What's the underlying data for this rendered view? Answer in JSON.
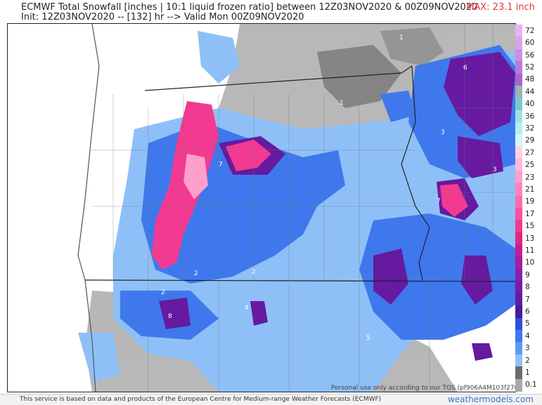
{
  "header": {
    "title": "ECMWF Total Snowfall [inches | 10:1 liquid frozen ratio] between 12Z03NOV2020 & 00Z09NOV2020",
    "init": "Init: 12Z03NOV2020 -- [132] hr --> Valid Mon 00Z09NOV2020",
    "max": "MAX: 23.1 inch"
  },
  "legend": {
    "levels": [
      {
        "label": "72",
        "color": "#e8b4f0"
      },
      {
        "label": "60",
        "color": "#d9a3ea"
      },
      {
        "label": "56",
        "color": "#c98fe0"
      },
      {
        "label": "52",
        "color": "#b87ad6"
      },
      {
        "label": "48",
        "color": "#a766cc"
      },
      {
        "label": "44",
        "color": "#9ab5b5"
      },
      {
        "label": "40",
        "color": "#7dc9c9"
      },
      {
        "label": "36",
        "color": "#9fe0e6"
      },
      {
        "label": "32",
        "color": "#b9eef0"
      },
      {
        "label": "29",
        "color": "#d6f5f7"
      },
      {
        "label": "27",
        "color": "#ffd1e6"
      },
      {
        "label": "25",
        "color": "#ffb8d9"
      },
      {
        "label": "23",
        "color": "#ff9fcb"
      },
      {
        "label": "21",
        "color": "#ff85bd"
      },
      {
        "label": "19",
        "color": "#ff6bad"
      },
      {
        "label": "17",
        "color": "#ff4f9c"
      },
      {
        "label": "15",
        "color": "#f23a90"
      },
      {
        "label": "13",
        "color": "#e02585"
      },
      {
        "label": "11",
        "color": "#c71e8f"
      },
      {
        "label": "10",
        "color": "#a31f9c"
      },
      {
        "label": "9",
        "color": "#8a1fa8"
      },
      {
        "label": "8",
        "color": "#7a1ba8"
      },
      {
        "label": "7",
        "color": "#651aa0"
      },
      {
        "label": "6",
        "color": "#4a1a96"
      },
      {
        "label": "5",
        "color": "#2f4fd8"
      },
      {
        "label": "4",
        "color": "#3f78ec"
      },
      {
        "label": "3",
        "color": "#5c9af2"
      },
      {
        "label": "2",
        "color": "#8ec0f7"
      },
      {
        "label": "1",
        "color": "#6b6b6b"
      },
      {
        "label": "0.1",
        "color": "#a8a8a8"
      }
    ]
  },
  "map_labels": [
    {
      "text": "1"
    },
    {
      "text": "6"
    },
    {
      "text": "1"
    },
    {
      "text": "3"
    },
    {
      "text": "7"
    },
    {
      "text": "3"
    },
    {
      "text": "7"
    },
    {
      "text": "2"
    },
    {
      "text": "2"
    },
    {
      "text": "2"
    },
    {
      "text": "8"
    },
    {
      "text": "4"
    },
    {
      "text": "5"
    },
    {
      "text": "3"
    }
  ],
  "footer": {
    "tos": "Personal use only according to our TOS (pf906A4M103f27C940)",
    "source": "This service is based on data and products of the European Centre for Medium-range Weather Forecasts (ECMWF)",
    "brand": "weathermodels.com"
  },
  "colors": {
    "ocean": "#ffffff",
    "trace": "#a8a8a8",
    "light": "#8ec0f7",
    "moderate": "#3f78ec",
    "heavy": "#651aa0",
    "extreme": "#f23a90"
  }
}
